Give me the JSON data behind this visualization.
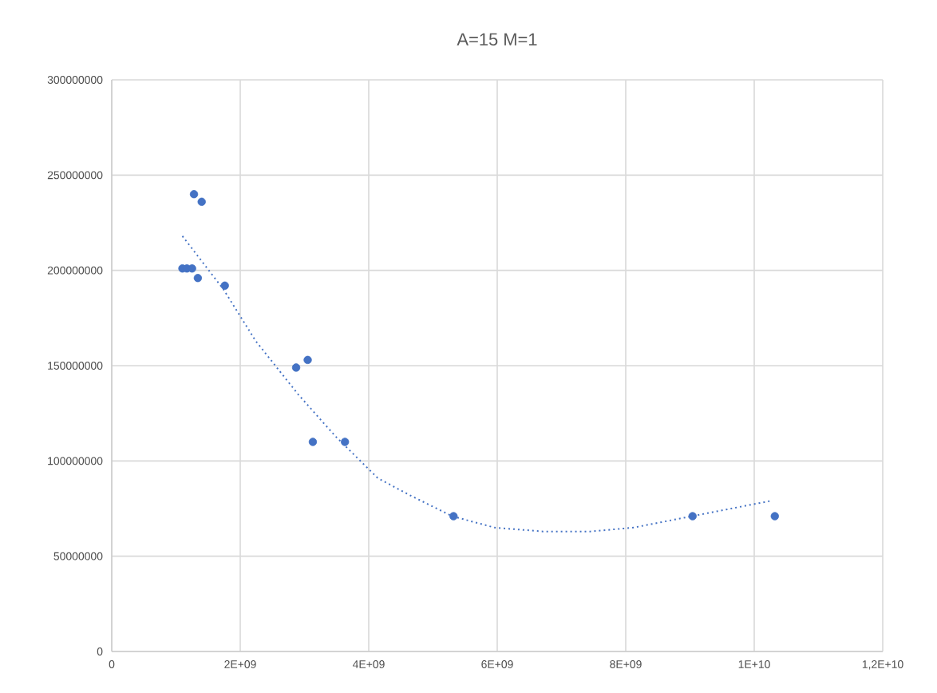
{
  "chart_data": {
    "type": "scatter",
    "title": "A=15    M=1",
    "series": [
      {
        "type": "scatter",
        "color": "#4472c4",
        "marker": "circle",
        "x": [
          1100000000,
          1170000000,
          1250000000,
          1280000000,
          1320000000,
          1340000000,
          1400000000,
          1760000000,
          2870000000,
          3050000000,
          3130000000,
          3630000000,
          5320000000,
          9040000000,
          10320000000
        ],
        "values": [
          201000000,
          201000000,
          201000000,
          240000000,
          null,
          196000000,
          236000000,
          192000000,
          149000000,
          153000000,
          110000000,
          110000000,
          71000000,
          71000000,
          71000000
        ]
      },
      {
        "type": "line",
        "color": "#4472c4",
        "marker": "none",
        "line_style": "dotted",
        "x": [
          1100000000,
          1740000000,
          2240000000,
          2900000000,
          3480000000,
          4140000000,
          4640000000,
          5300000000,
          5960000000,
          6710000000,
          7450000000,
          8120000000,
          9030000000,
          10250000000
        ],
        "values": [
          218000000,
          190000000,
          163000000,
          135000000,
          113000000,
          91000000,
          82000000,
          71000000,
          65000000,
          63000000,
          63000000,
          65000000,
          71000000,
          79000000
        ]
      }
    ],
    "xlim": [
      0,
      12000000000
    ],
    "xticks": [
      0,
      {
        "value": 2000000000,
        "label": "2E+09"
      },
      {
        "value": 4000000000,
        "label": "4E+09"
      },
      {
        "value": 6000000000,
        "label": "6E+09"
      },
      {
        "value": 8000000000,
        "label": "8E+09"
      },
      {
        "value": 10000000000,
        "label": "1E+10"
      },
      {
        "value": 12000000000,
        "label": "1,2E+10"
      }
    ],
    "ylim": [
      0,
      300000000
    ],
    "yticks": [
      0,
      50000000,
      100000000,
      150000000,
      200000000,
      250000000,
      300000000
    ],
    "grid": true
  }
}
